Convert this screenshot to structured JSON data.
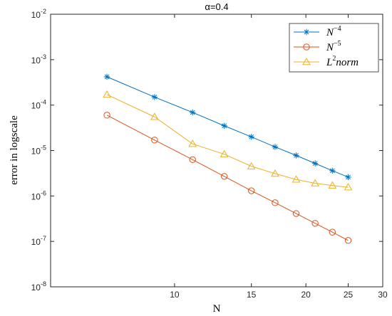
{
  "chart_data": {
    "type": "line",
    "title": "α=0.4",
    "xlabel": "N",
    "ylabel": "error in logscale",
    "xscale": "log",
    "yscale": "log",
    "xlim": [
      5.2,
      30
    ],
    "ylim": [
      1e-08,
      0.01
    ],
    "x_ticks": [
      10,
      15,
      20,
      25,
      30
    ],
    "x_tick_labels": [
      "10",
      "15",
      "20",
      "25",
      "30"
    ],
    "y_ticks": [
      1e-08,
      1e-07,
      1e-06,
      1e-05,
      0.0001,
      0.001,
      0.01
    ],
    "y_tick_labels": [
      {
        "base": "10",
        "exp": "-8"
      },
      {
        "base": "10",
        "exp": "-7"
      },
      {
        "base": "10",
        "exp": "-6"
      },
      {
        "base": "10",
        "exp": "-5"
      },
      {
        "base": "10",
        "exp": "-4"
      },
      {
        "base": "10",
        "exp": "-3"
      },
      {
        "base": "10",
        "exp": "-2"
      }
    ],
    "grid": false,
    "legend_position": "top-right",
    "x": [
      7,
      9,
      11,
      13,
      15,
      17,
      19,
      21,
      23,
      25
    ],
    "series": [
      {
        "name": "N",
        "name_sup": "−4",
        "marker": "asterisk",
        "color": "#0072BD",
        "values": [
          0.00042,
          0.00015,
          6.9e-05,
          3.5e-05,
          2e-05,
          1.2e-05,
          7.8e-06,
          5.2e-06,
          3.6e-06,
          2.6e-06
        ]
      },
      {
        "name": "N",
        "name_sup": "−5",
        "marker": "circle",
        "color": "#D95319",
        "values": [
          6e-05,
          1.7e-05,
          6.3e-06,
          2.7e-06,
          1.3e-06,
          7.1e-07,
          4.1e-07,
          2.5e-07,
          1.6e-07,
          1.05e-07
        ]
      },
      {
        "name": "L",
        "name_sup": "2",
        "name_suffix": "norm",
        "marker": "triangle",
        "color": "#EDB120",
        "values": [
          0.00017,
          5.5e-05,
          1.4e-05,
          8.3e-06,
          4.5e-06,
          3.1e-06,
          2.3e-06,
          1.9e-06,
          1.7e-06,
          1.55e-06
        ]
      }
    ]
  }
}
